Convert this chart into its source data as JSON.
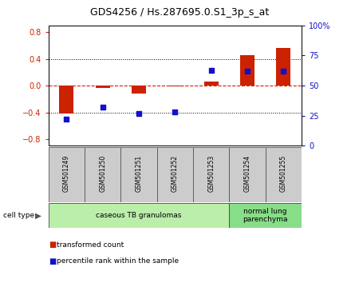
{
  "title": "GDS4256 / Hs.287695.0.S1_3p_s_at",
  "samples": [
    "GSM501249",
    "GSM501250",
    "GSM501251",
    "GSM501252",
    "GSM501253",
    "GSM501254",
    "GSM501255"
  ],
  "transformed_count": [
    -0.42,
    -0.04,
    -0.12,
    -0.01,
    0.06,
    0.46,
    0.56
  ],
  "percentile_rank": [
    22,
    32,
    27,
    28,
    63,
    62,
    62
  ],
  "bar_color": "#cc2200",
  "dot_color": "#1111cc",
  "ylim_left": [
    -0.9,
    0.9
  ],
  "ylim_right": [
    0,
    100
  ],
  "yticks_left": [
    -0.8,
    -0.4,
    0.0,
    0.4,
    0.8
  ],
  "yticks_right": [
    0,
    25,
    50,
    75,
    100
  ],
  "ytick_labels_right": [
    "0",
    "25",
    "50",
    "75",
    "100%"
  ],
  "hline_y": 0.0,
  "dotted_hlines": [
    -0.4,
    0.4
  ],
  "groups": [
    {
      "start": 0,
      "end": 4,
      "label": "caseous TB granulomas",
      "color": "#bbeeaa"
    },
    {
      "start": 5,
      "end": 6,
      "label": "normal lung\nparenchyma",
      "color": "#88dd88"
    }
  ],
  "legend_items": [
    {
      "label": "transformed count",
      "color": "#cc2200"
    },
    {
      "label": "percentile rank within the sample",
      "color": "#1111cc"
    }
  ],
  "cell_type_label": "cell type",
  "arrow": "▶"
}
